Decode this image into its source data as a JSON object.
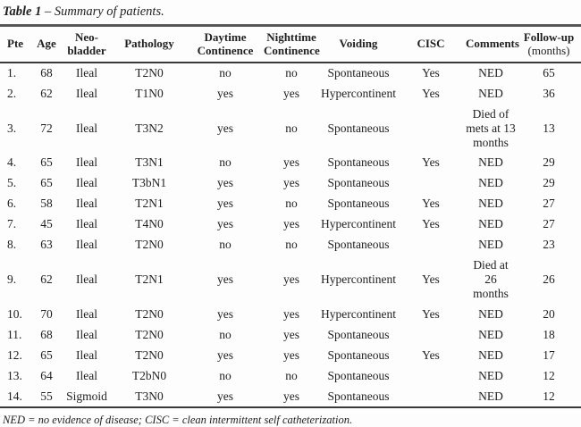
{
  "title": {
    "label": "Table 1",
    "caption": "– Summary of patients."
  },
  "columns": [
    {
      "key": "pte",
      "label": "Pte"
    },
    {
      "key": "age",
      "label": "Age"
    },
    {
      "key": "neobladder",
      "label": "Neo-\nbladder"
    },
    {
      "key": "pathology",
      "label": "Pathology"
    },
    {
      "key": "daytime",
      "label": "Daytime\nContinence"
    },
    {
      "key": "nighttime",
      "label": "Nighttime\nContinence"
    },
    {
      "key": "voiding",
      "label": "Voiding"
    },
    {
      "key": "cisc",
      "label": "CISC"
    },
    {
      "key": "comments",
      "label": "Comments"
    },
    {
      "key": "followup",
      "label": "Follow-up",
      "sublabel": "(months)"
    }
  ],
  "rows": [
    {
      "pte": "1.",
      "age": "68",
      "neobladder": "Ileal",
      "pathology": "T2N0",
      "daytime": "no",
      "nighttime": "no",
      "voiding": "Spontaneous",
      "cisc": "Yes",
      "comments": "NED",
      "followup": "65"
    },
    {
      "pte": "2.",
      "age": "62",
      "neobladder": "Ileal",
      "pathology": "T1N0",
      "daytime": "yes",
      "nighttime": "yes",
      "voiding": "Hypercontinent",
      "cisc": "Yes",
      "comments": "NED",
      "followup": "36"
    },
    {
      "pte": "3.",
      "age": "72",
      "neobladder": "Ileal",
      "pathology": "T3N2",
      "daytime": "yes",
      "nighttime": "no",
      "voiding": "Spontaneous",
      "cisc": "",
      "comments": "Died of\nmets at 13\nmonths",
      "followup": "13"
    },
    {
      "pte": "4.",
      "age": "65",
      "neobladder": "Ileal",
      "pathology": "T3N1",
      "daytime": "no",
      "nighttime": "yes",
      "voiding": "Spontaneous",
      "cisc": "Yes",
      "comments": "NED",
      "followup": "29"
    },
    {
      "pte": "5.",
      "age": "65",
      "neobladder": "Ileal",
      "pathology": "T3bN1",
      "daytime": "yes",
      "nighttime": "yes",
      "voiding": "Spontaneous",
      "cisc": "",
      "comments": "NED",
      "followup": "29"
    },
    {
      "pte": "6.",
      "age": "58",
      "neobladder": "Ileal",
      "pathology": "T2N1",
      "daytime": "yes",
      "nighttime": "no",
      "voiding": "Spontaneous",
      "cisc": "Yes",
      "comments": "NED",
      "followup": "27"
    },
    {
      "pte": "7.",
      "age": "45",
      "neobladder": "Ileal",
      "pathology": "T4N0",
      "daytime": "yes",
      "nighttime": "yes",
      "voiding": "Hypercontinent",
      "cisc": "Yes",
      "comments": "NED",
      "followup": "27"
    },
    {
      "pte": "8.",
      "age": "63",
      "neobladder": "Ileal",
      "pathology": "T2N0",
      "daytime": "no",
      "nighttime": "no",
      "voiding": "Spontaneous",
      "cisc": "",
      "comments": "NED",
      "followup": "23"
    },
    {
      "pte": "9.",
      "age": "62",
      "neobladder": "Ileal",
      "pathology": "T2N1",
      "daytime": "yes",
      "nighttime": "yes",
      "voiding": "Hypercontinent",
      "cisc": "Yes",
      "comments": "Died at 26\nmonths",
      "followup": "26"
    },
    {
      "pte": "10.",
      "age": "70",
      "neobladder": "Ileal",
      "pathology": "T2N0",
      "daytime": "yes",
      "nighttime": "yes",
      "voiding": "Hypercontinent",
      "cisc": "Yes",
      "comments": "NED",
      "followup": "20"
    },
    {
      "pte": "11.",
      "age": "68",
      "neobladder": "Ileal",
      "pathology": "T2N0",
      "daytime": "no",
      "nighttime": "yes",
      "voiding": "Spontaneous",
      "cisc": "",
      "comments": "NED",
      "followup": "18"
    },
    {
      "pte": "12.",
      "age": "65",
      "neobladder": "Ileal",
      "pathology": "T2N0",
      "daytime": "yes",
      "nighttime": "yes",
      "voiding": "Spontaneous",
      "cisc": "Yes",
      "comments": "NED",
      "followup": "17"
    },
    {
      "pte": "13.",
      "age": "64",
      "neobladder": "Ileal",
      "pathology": "T2bN0",
      "daytime": "no",
      "nighttime": "no",
      "voiding": "Spontaneous",
      "cisc": "",
      "comments": "NED",
      "followup": "12"
    },
    {
      "pte": "14.",
      "age": "55",
      "neobladder": "Sigmoid",
      "pathology": "T3N0",
      "daytime": "yes",
      "nighttime": "yes",
      "voiding": "Spontaneous",
      "cisc": "",
      "comments": "NED",
      "followup": "12"
    }
  ],
  "footnote": "NED = no evidence of disease; CISC = clean intermittent self catheterization.",
  "colors": {
    "text": "#1f1f1f",
    "rule_heavy": "#575757",
    "rule_dark": "#3a3a3a",
    "background": "#fdfdfd"
  }
}
